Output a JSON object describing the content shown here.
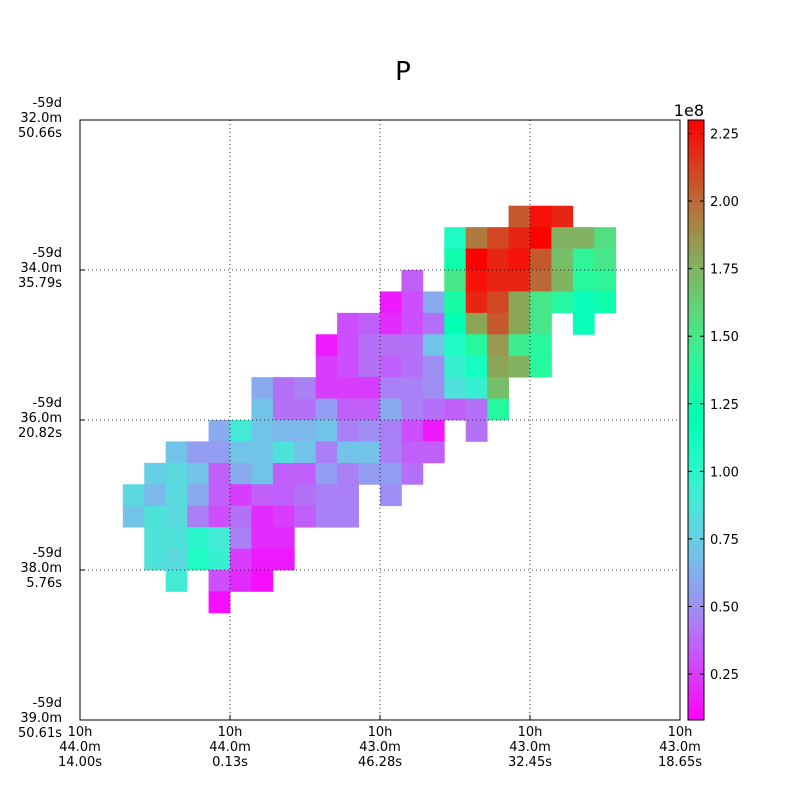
{
  "chart_data": {
    "type": "heatmap",
    "title": "P",
    "xlabel": "",
    "ylabel": "",
    "grid": true,
    "x_ticks": [
      [
        "10h",
        "44.0m",
        "14.00s"
      ],
      [
        "10h",
        "44.0m",
        "0.13s"
      ],
      [
        "10h",
        "43.0m",
        "46.28s"
      ],
      [
        "10h",
        "43.0m",
        "32.45s"
      ],
      [
        "10h",
        "43.0m",
        "18.65s"
      ]
    ],
    "y_ticks": [
      [
        "-59d",
        "32.0m",
        "50.66s"
      ],
      [
        "-59d",
        "34.0m",
        "35.79s"
      ],
      [
        "-59d",
        "36.0m",
        "20.82s"
      ],
      [
        "-59d",
        "38.0m",
        "5.76s"
      ],
      [
        "-59d",
        "39.0m",
        "50.61s"
      ]
    ],
    "grid_cols": 28,
    "grid_rows": 28,
    "colorbar": {
      "colormap": "rainbow",
      "exponent_label": "1e8",
      "min": 0.08,
      "max": 2.3,
      "ticks": [
        {
          "value": 2.25,
          "label": "2.25"
        },
        {
          "value": 2.0,
          "label": "2.00"
        },
        {
          "value": 1.75,
          "label": "1.75"
        },
        {
          "value": 1.5,
          "label": "1.50"
        },
        {
          "value": 1.25,
          "label": "1.25"
        },
        {
          "value": 1.0,
          "label": "1.00"
        },
        {
          "value": 0.75,
          "label": "0.75"
        },
        {
          "value": 0.5,
          "label": "0.50"
        },
        {
          "value": 0.25,
          "label": "0.25"
        }
      ]
    },
    "cells": [
      [
        4,
        20,
        2.05
      ],
      [
        4,
        21,
        2.25
      ],
      [
        4,
        22,
        2.2
      ],
      [
        5,
        17,
        1.05
      ],
      [
        5,
        18,
        1.95
      ],
      [
        5,
        19,
        2.1
      ],
      [
        5,
        20,
        2.2
      ],
      [
        5,
        21,
        2.3
      ],
      [
        5,
        22,
        1.75
      ],
      [
        5,
        23,
        1.75
      ],
      [
        5,
        24,
        1.55
      ],
      [
        6,
        17,
        1.25
      ],
      [
        6,
        18,
        2.3
      ],
      [
        6,
        19,
        2.2
      ],
      [
        6,
        20,
        2.25
      ],
      [
        6,
        21,
        2.05
      ],
      [
        6,
        22,
        1.7
      ],
      [
        6,
        23,
        1.4
      ],
      [
        6,
        24,
        1.5
      ],
      [
        7,
        15,
        0.35
      ],
      [
        7,
        17,
        1.5
      ],
      [
        7,
        18,
        2.25
      ],
      [
        7,
        19,
        2.2
      ],
      [
        7,
        20,
        2.2
      ],
      [
        7,
        21,
        2.0
      ],
      [
        7,
        22,
        1.75
      ],
      [
        7,
        23,
        1.35
      ],
      [
        7,
        24,
        1.4
      ],
      [
        8,
        14,
        0.15
      ],
      [
        8,
        15,
        0.3
      ],
      [
        8,
        16,
        0.6
      ],
      [
        8,
        17,
        1.3
      ],
      [
        8,
        18,
        2.2
      ],
      [
        8,
        19,
        2.1
      ],
      [
        8,
        20,
        1.8
      ],
      [
        8,
        21,
        1.5
      ],
      [
        8,
        22,
        1.35
      ],
      [
        8,
        23,
        1.15
      ],
      [
        8,
        24,
        1.25
      ],
      [
        9,
        12,
        0.3
      ],
      [
        9,
        13,
        0.35
      ],
      [
        9,
        14,
        0.2
      ],
      [
        9,
        15,
        0.3
      ],
      [
        9,
        16,
        0.4
      ],
      [
        9,
        17,
        1.2
      ],
      [
        9,
        18,
        1.8
      ],
      [
        9,
        19,
        2.05
      ],
      [
        9,
        20,
        1.8
      ],
      [
        9,
        21,
        1.5
      ],
      [
        9,
        23,
        1.15
      ],
      [
        10,
        11,
        0.15
      ],
      [
        10,
        12,
        0.3
      ],
      [
        10,
        13,
        0.4
      ],
      [
        10,
        14,
        0.4
      ],
      [
        10,
        15,
        0.4
      ],
      [
        10,
        16,
        0.7
      ],
      [
        10,
        17,
        1.05
      ],
      [
        10,
        18,
        1.35
      ],
      [
        10,
        19,
        1.85
      ],
      [
        10,
        20,
        1.45
      ],
      [
        10,
        21,
        1.35
      ],
      [
        11,
        11,
        0.25
      ],
      [
        11,
        12,
        0.3
      ],
      [
        11,
        13,
        0.4
      ],
      [
        11,
        14,
        0.35
      ],
      [
        11,
        15,
        0.4
      ],
      [
        11,
        16,
        0.5
      ],
      [
        11,
        17,
        0.95
      ],
      [
        11,
        18,
        1.1
      ],
      [
        11,
        19,
        1.8
      ],
      [
        11,
        20,
        1.75
      ],
      [
        11,
        21,
        1.35
      ],
      [
        12,
        8,
        0.6
      ],
      [
        12,
        9,
        0.4
      ],
      [
        12,
        10,
        0.45
      ],
      [
        12,
        11,
        0.25
      ],
      [
        12,
        12,
        0.25
      ],
      [
        12,
        13,
        0.25
      ],
      [
        12,
        14,
        0.45
      ],
      [
        12,
        15,
        0.45
      ],
      [
        12,
        16,
        0.5
      ],
      [
        12,
        17,
        0.85
      ],
      [
        12,
        18,
        0.95
      ],
      [
        12,
        19,
        1.7
      ],
      [
        13,
        8,
        0.7
      ],
      [
        13,
        9,
        0.4
      ],
      [
        13,
        10,
        0.4
      ],
      [
        13,
        11,
        0.55
      ],
      [
        13,
        12,
        0.35
      ],
      [
        13,
        13,
        0.35
      ],
      [
        13,
        14,
        0.6
      ],
      [
        13,
        15,
        0.45
      ],
      [
        13,
        16,
        0.4
      ],
      [
        13,
        17,
        0.35
      ],
      [
        13,
        18,
        0.4
      ],
      [
        13,
        19,
        1.35
      ],
      [
        14,
        6,
        0.6
      ],
      [
        14,
        7,
        0.9
      ],
      [
        14,
        8,
        0.7
      ],
      [
        14,
        9,
        0.65
      ],
      [
        14,
        10,
        0.65
      ],
      [
        14,
        11,
        0.7
      ],
      [
        14,
        12,
        0.45
      ],
      [
        14,
        13,
        0.5
      ],
      [
        14,
        14,
        0.45
      ],
      [
        14,
        15,
        0.3
      ],
      [
        14,
        16,
        0.15
      ],
      [
        14,
        18,
        0.4
      ],
      [
        15,
        4,
        0.7
      ],
      [
        15,
        5,
        0.55
      ],
      [
        15,
        6,
        0.55
      ],
      [
        15,
        7,
        0.7
      ],
      [
        15,
        8,
        0.7
      ],
      [
        15,
        9,
        0.85
      ],
      [
        15,
        10,
        0.7
      ],
      [
        15,
        11,
        0.45
      ],
      [
        15,
        12,
        0.7
      ],
      [
        15,
        13,
        0.7
      ],
      [
        15,
        14,
        0.45
      ],
      [
        15,
        15,
        0.35
      ],
      [
        15,
        16,
        0.35
      ],
      [
        16,
        3,
        0.75
      ],
      [
        16,
        4,
        0.8
      ],
      [
        16,
        5,
        0.7
      ],
      [
        16,
        6,
        0.35
      ],
      [
        16,
        7,
        0.6
      ],
      [
        16,
        8,
        0.7
      ],
      [
        16,
        9,
        0.35
      ],
      [
        16,
        10,
        0.35
      ],
      [
        16,
        11,
        0.55
      ],
      [
        16,
        12,
        0.45
      ],
      [
        16,
        13,
        0.55
      ],
      [
        16,
        14,
        0.55
      ],
      [
        16,
        15,
        0.4
      ],
      [
        17,
        2,
        0.8
      ],
      [
        17,
        3,
        0.65
      ],
      [
        17,
        4,
        0.8
      ],
      [
        17,
        5,
        0.6
      ],
      [
        17,
        6,
        0.35
      ],
      [
        17,
        7,
        0.25
      ],
      [
        17,
        8,
        0.35
      ],
      [
        17,
        9,
        0.35
      ],
      [
        17,
        10,
        0.4
      ],
      [
        17,
        11,
        0.45
      ],
      [
        17,
        12,
        0.45
      ],
      [
        17,
        14,
        0.5
      ],
      [
        18,
        2,
        0.7
      ],
      [
        18,
        3,
        0.85
      ],
      [
        18,
        4,
        0.8
      ],
      [
        18,
        5,
        0.45
      ],
      [
        18,
        6,
        0.3
      ],
      [
        18,
        7,
        0.4
      ],
      [
        18,
        8,
        0.2
      ],
      [
        18,
        9,
        0.25
      ],
      [
        18,
        10,
        0.35
      ],
      [
        18,
        11,
        0.45
      ],
      [
        18,
        12,
        0.45
      ],
      [
        19,
        3,
        0.85
      ],
      [
        19,
        4,
        0.85
      ],
      [
        19,
        5,
        1.0
      ],
      [
        19,
        6,
        0.9
      ],
      [
        19,
        7,
        0.45
      ],
      [
        19,
        8,
        0.2
      ],
      [
        19,
        9,
        0.2
      ],
      [
        20,
        3,
        0.85
      ],
      [
        20,
        4,
        0.8
      ],
      [
        20,
        5,
        1.05
      ],
      [
        20,
        6,
        0.95
      ],
      [
        20,
        7,
        0.25
      ],
      [
        20,
        8,
        0.15
      ],
      [
        20,
        9,
        0.15
      ],
      [
        21,
        4,
        0.9
      ],
      [
        21,
        6,
        0.3
      ],
      [
        21,
        7,
        0.2
      ],
      [
        21,
        8,
        0.12
      ],
      [
        22,
        6,
        0.12
      ]
    ]
  }
}
